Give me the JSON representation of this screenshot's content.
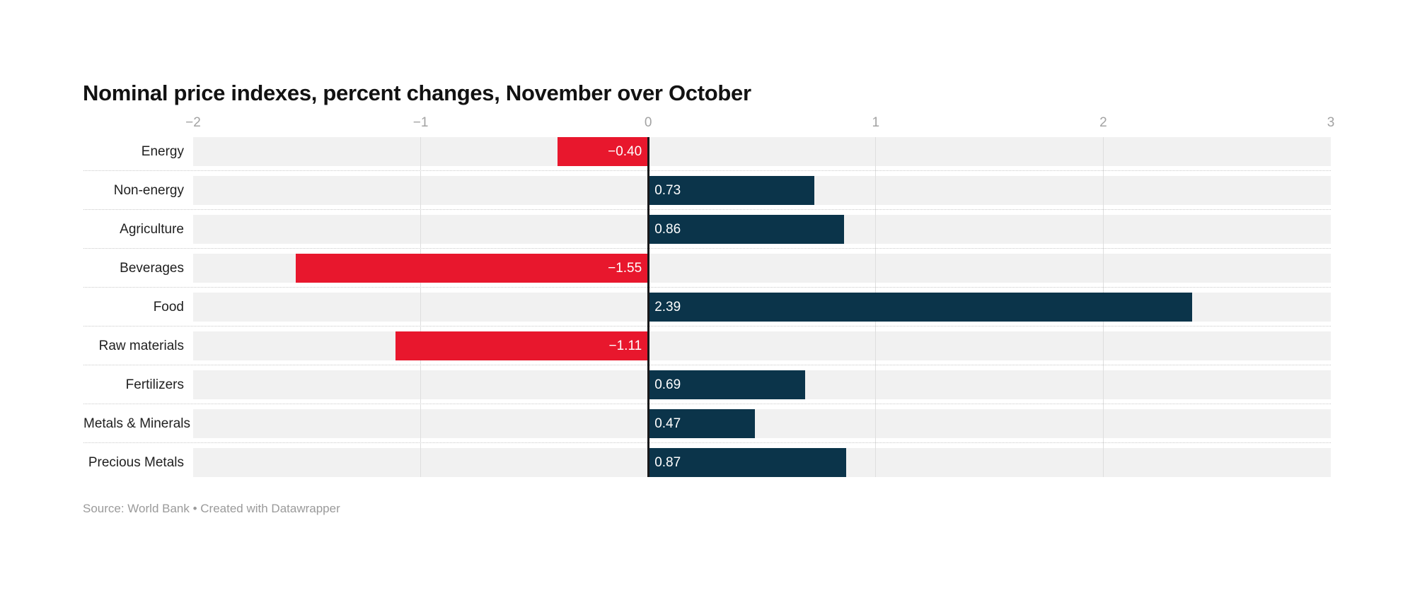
{
  "header": {
    "title": "Nominal price indexes, percent changes, November over October"
  },
  "footer": {
    "source_note": "Source: World Bank • Created with Datawrapper"
  },
  "colors": {
    "positive_bar": "#0b344a",
    "negative_bar": "#e8172d",
    "row_band": "#f1f1f1",
    "gridline": "#dedede",
    "zero_line": "#18181a",
    "tick_text": "#a3a3a3",
    "category_text": "#1f1f1f",
    "title_text": "#121212",
    "source_text": "#9a9a9a",
    "bar_value_text": "#ffffff"
  },
  "chart_data": {
    "type": "bar",
    "orientation": "horizontal",
    "title": "Nominal price indexes, percent changes, November over October",
    "categories": [
      "Energy",
      "Non-energy",
      "Agriculture",
      "Beverages",
      "Food",
      "Raw materials",
      "Fertilizers",
      "Metals & Minerals",
      "Precious Metals"
    ],
    "values": [
      -0.4,
      0.73,
      0.86,
      -1.55,
      2.39,
      -1.11,
      0.69,
      0.47,
      0.87
    ],
    "value_labels": [
      "−0.40",
      "0.73",
      "0.86",
      "−1.55",
      "2.39",
      "−1.11",
      "0.69",
      "0.47",
      "0.87"
    ],
    "x_ticks": [
      -2,
      -1,
      0,
      1,
      2,
      3
    ],
    "x_tick_labels": [
      "−2",
      "−1",
      "0",
      "1",
      "2",
      "3"
    ],
    "xlim": [
      -2,
      3
    ],
    "xlabel": "",
    "ylabel": "",
    "grid": true,
    "legend": "none",
    "bar_colors": {
      "positive": "#0b344a",
      "negative": "#e8172d"
    },
    "source": "World Bank",
    "tool": "Datawrapper"
  }
}
